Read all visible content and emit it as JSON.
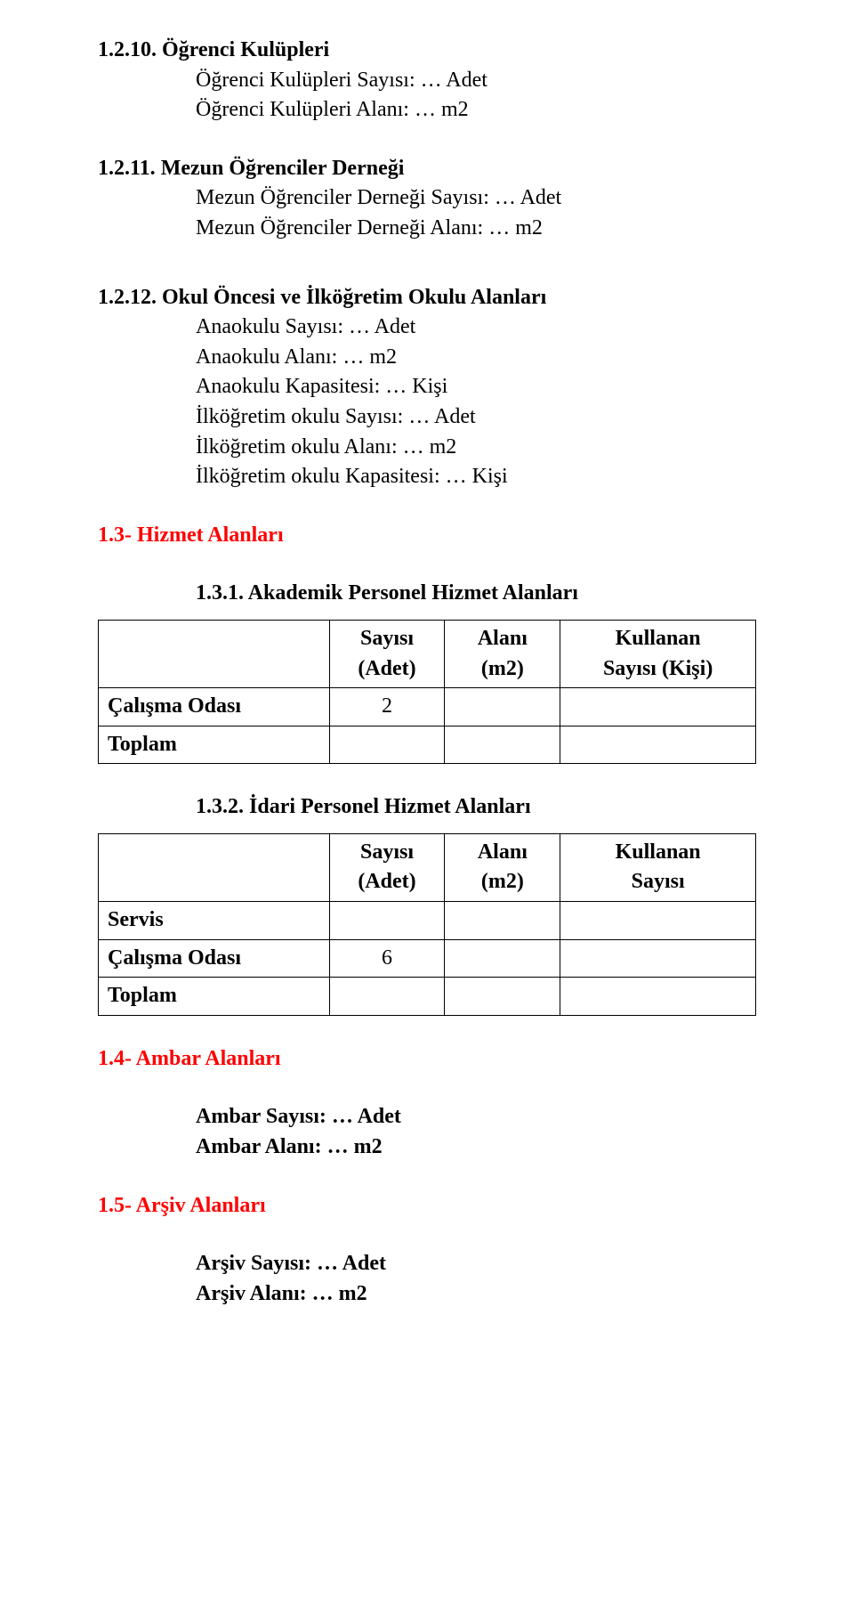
{
  "s1210": {
    "num": "1.2.10.",
    "title": "Öğrenci Kulüpleri",
    "l1": "Öğrenci Kulüpleri Sayısı: … Adet",
    "l2": "Öğrenci Kulüpleri Alanı: … m2"
  },
  "s1211": {
    "num": "1.2.11.",
    "title": "Mezun Öğrenciler Derneği",
    "l1": "Mezun Öğrenciler Derneği Sayısı: … Adet",
    "l2": "Mezun Öğrenciler Derneği Alanı: … m2"
  },
  "s1212": {
    "num": "1.2.12.",
    "title": "Okul Öncesi ve İlköğretim Okulu Alanları",
    "l1": "Anaokulu Sayısı: … Adet",
    "l2": "Anaokulu Alanı: … m2",
    "l3": "Anaokulu Kapasitesi: … Kişi",
    "l4": "İlköğretim okulu Sayısı: … Adet",
    "l5": "İlköğretim okulu Alanı: … m2",
    "l6": "İlköğretim okulu Kapasitesi: … Kişi"
  },
  "s13": {
    "title": "1.3- Hizmet Alanları"
  },
  "s131": {
    "title": "1.3.1. Akademik Personel Hizmet Alanları"
  },
  "s132": {
    "title": "1.3.2. İdari Personel Hizmet Alanları"
  },
  "headers": {
    "count_l1": "Sayısı",
    "count_l2": "(Adet)",
    "area_l1": "Alanı",
    "area_l2": "(m2)",
    "users_a_l1": "Kullanan",
    "users_a_l2": "Sayısı (Kişi)",
    "users_b_l1": "Kullanan",
    "users_b_l2": "Sayısı"
  },
  "table_a": {
    "r1_label": "Çalışma Odası",
    "r1_count": "2",
    "r2_label": "Toplam"
  },
  "table_b": {
    "r1_label": "Servis",
    "r2_label": "Çalışma Odası",
    "r2_count": "6",
    "r3_label": "Toplam"
  },
  "s14": {
    "title": "1.4- Ambar Alanları",
    "l1": "Ambar Sayısı: … Adet",
    "l2": "Ambar Alanı: … m2"
  },
  "s15": {
    "title": "1.5- Arşiv Alanları",
    "l1": "Arşiv Sayısı: … Adet",
    "l2": "Arşiv Alanı: … m2"
  }
}
